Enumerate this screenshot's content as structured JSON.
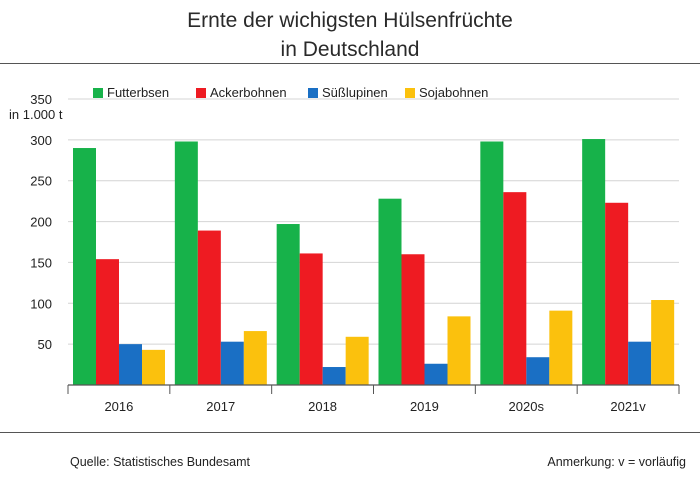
{
  "title_line1": "Ernte der wichigsten Hülsenfrüchte",
  "title_line2": "in Deutschland",
  "source": "Quelle: Statistisches Bundesamt",
  "note": "Anmerkung: v = vorläufig",
  "chart_data": {
    "type": "bar",
    "ylabel": "in 1.000 t",
    "xlabel": "",
    "ylim": [
      0,
      350
    ],
    "yticks": [
      50,
      100,
      150,
      200,
      250,
      300,
      350
    ],
    "grid": true,
    "legend_position": "top",
    "categories": [
      "2016",
      "2017",
      "2018",
      "2019",
      "2020s",
      "2021v"
    ],
    "series": [
      {
        "name": "Futterbsen",
        "color": "#17b24a",
        "values": [
          290,
          298,
          197,
          228,
          298,
          301
        ]
      },
      {
        "name": "Ackerbohnen",
        "color": "#ee1b22",
        "values": [
          154,
          189,
          161,
          160,
          236,
          223
        ]
      },
      {
        "name": "Süßlupinen",
        "color": "#1a6fc4",
        "values": [
          50,
          53,
          22,
          26,
          34,
          53
        ]
      },
      {
        "name": "Sojabohnen",
        "color": "#fbc10d",
        "values": [
          43,
          66,
          59,
          84,
          91,
          104
        ]
      }
    ]
  }
}
